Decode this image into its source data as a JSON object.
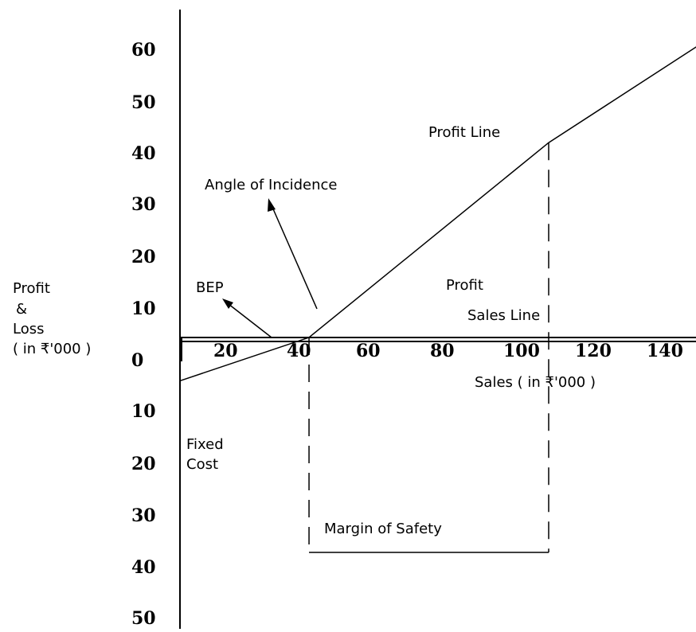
{
  "chart_data": {
    "type": "line",
    "title": "",
    "xlabel": "Sales ( in ₹'000 )",
    "ylabel_lines": [
      "Profit",
      "&",
      "Loss",
      "( in ₹'000 )"
    ],
    "x_ticks": [
      "20",
      "40",
      "60",
      "80",
      "100",
      "120",
      "140"
    ],
    "y_ticks_profit": [
      "60",
      "50",
      "40",
      "30",
      "20",
      "10"
    ],
    "y_tick_zero": "0",
    "y_ticks_loss": [
      "10",
      "20",
      "30",
      "40",
      "50"
    ],
    "xlim": [
      0,
      140
    ],
    "ylim": [
      -50,
      60
    ],
    "series": [
      {
        "name": "Profit Line",
        "x": [
          0,
          35,
          100,
          143
        ],
        "y": [
          -8,
          0,
          36,
          55
        ]
      }
    ],
    "bep": {
      "x": 35,
      "y": 0
    },
    "actual_sales": 100,
    "annotations": {
      "profit_line": "Profit Line",
      "angle_of_incidence": "Angle of Incidence",
      "bep": "BEP",
      "profit": "Profit",
      "sales_line": "Sales Line",
      "fixed_cost": [
        "Fixed",
        "Cost"
      ],
      "margin_of_safety": "Margin of Safety"
    },
    "grid": false,
    "legend": "none"
  }
}
